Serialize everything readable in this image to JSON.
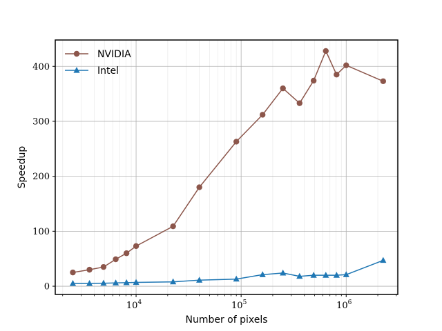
{
  "chart_data": {
    "type": "line",
    "xscale": "log",
    "xlabel": "Number of pixels",
    "ylabel": "Speedup",
    "xlim": [
      1700,
      3100000
    ],
    "ylim": [
      -15,
      448
    ],
    "x_ticks": [
      {
        "value": 10000,
        "base": "10",
        "exp": "4"
      },
      {
        "value": 100000,
        "base": "10",
        "exp": "5"
      },
      {
        "value": 1000000,
        "base": "10",
        "exp": "6"
      }
    ],
    "y_ticks": [
      {
        "value": 0,
        "label": "0"
      },
      {
        "value": 100,
        "label": "100"
      },
      {
        "value": 200,
        "label": "200"
      },
      {
        "value": 300,
        "label": "300"
      },
      {
        "value": 400,
        "label": "400"
      }
    ],
    "grid": true,
    "legend_position": "top-left",
    "series": [
      {
        "name": "NVIDIA",
        "color": "#8c564b",
        "marker": "circle",
        "points": [
          [
            2500,
            25
          ],
          [
            3600,
            30
          ],
          [
            4900,
            35
          ],
          [
            6400,
            49
          ],
          [
            8100,
            60
          ],
          [
            10000,
            73
          ],
          [
            22500,
            109
          ],
          [
            40000,
            180
          ],
          [
            90000,
            263
          ],
          [
            160000,
            312
          ],
          [
            250000,
            360
          ],
          [
            360000,
            333
          ],
          [
            490000,
            374
          ],
          [
            640000,
            428
          ],
          [
            810000,
            385
          ],
          [
            1000000,
            402
          ],
          [
            2250000,
            373
          ]
        ]
      },
      {
        "name": "Intel",
        "color": "#1f77b4",
        "marker": "triangle",
        "points": [
          [
            2500,
            5
          ],
          [
            3600,
            5
          ],
          [
            4900,
            5.5
          ],
          [
            6400,
            6
          ],
          [
            8100,
            6.5
          ],
          [
            10000,
            7
          ],
          [
            22500,
            8
          ],
          [
            40000,
            11
          ],
          [
            90000,
            13
          ],
          [
            160000,
            21
          ],
          [
            250000,
            24
          ],
          [
            360000,
            18
          ],
          [
            490000,
            20
          ],
          [
            640000,
            20
          ],
          [
            810000,
            20
          ],
          [
            1000000,
            21
          ],
          [
            2250000,
            47
          ]
        ]
      }
    ]
  }
}
